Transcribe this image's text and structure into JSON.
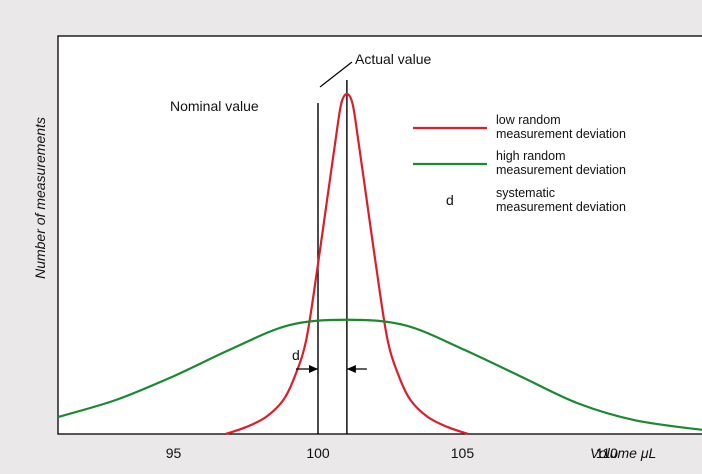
{
  "chart_data": {
    "type": "line",
    "xlabel": "Volume μL",
    "ylabel": "Number of measurements",
    "xlim": [
      91,
      113.5
    ],
    "x_ticks": [
      95,
      100,
      105,
      110
    ],
    "grid": false,
    "legend_position": "top-right",
    "nominal_value": 100,
    "actual_value": 101,
    "annotations": {
      "nominal": "Nominal value",
      "actual": "Actual value",
      "deviation_marker": "d"
    },
    "series": [
      {
        "name": "low random measurement deviation",
        "legend_lines": [
          "low random",
          "measurement deviation"
        ],
        "color": "#d81f2a",
        "mean": 101,
        "x": [
          96.8,
          97.5,
          98.2,
          98.8,
          99.2,
          99.6,
          100.0,
          100.3,
          100.6,
          100.8,
          101.0,
          101.2,
          101.4,
          101.7,
          102.0,
          102.4,
          102.8,
          103.2,
          103.8,
          104.5,
          105.2
        ],
        "y": [
          0,
          0.02,
          0.05,
          0.1,
          0.17,
          0.28,
          0.5,
          0.68,
          0.86,
          0.97,
          1.0,
          0.97,
          0.86,
          0.68,
          0.5,
          0.28,
          0.17,
          0.1,
          0.05,
          0.02,
          0
        ]
      },
      {
        "name": "high random measurement deviation",
        "legend_lines": [
          "high random",
          "measurement deviation"
        ],
        "color": "#1a8a32",
        "mean": 101,
        "x": [
          91,
          93,
          95,
          97,
          99,
          101,
          103,
          105,
          107,
          109,
          111,
          113.5
        ],
        "y": [
          0.05,
          0.1,
          0.17,
          0.25,
          0.32,
          0.336,
          0.32,
          0.25,
          0.17,
          0.09,
          0.04,
          0.01
        ]
      }
    ],
    "legend_extra": {
      "symbol": "d",
      "lines": [
        "systematic",
        "measurement deviation"
      ]
    }
  }
}
